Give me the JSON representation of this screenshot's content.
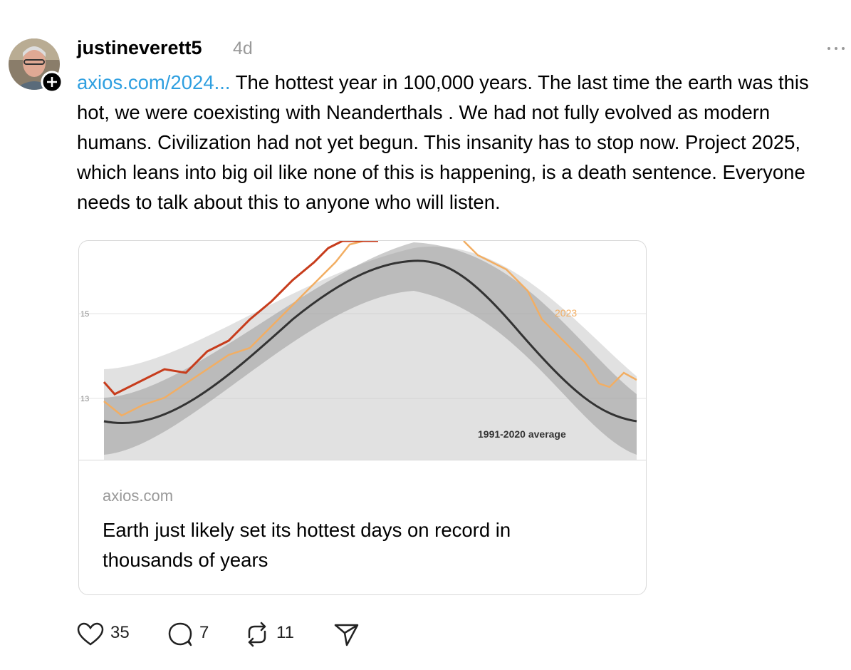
{
  "post": {
    "username": "justineverett5",
    "time": "4d",
    "link": "axios.com/2024...",
    "text": "The hottest year in 100,000 years. The last time the earth was this hot, we were coexisting with Neanderthals . We had not fully evolved as modern humans. Civilization had not yet begun. This insanity has to stop now. Project 2025, which leans into big oil like none of this is happening, is a death sentence. Everyone needs to talk about this to anyone who will listen.",
    "preview": {
      "image": {
        "tick_labels": [
          "15",
          "13"
        ],
        "series_label": "2023",
        "average_label": "1991-2020 average"
      },
      "domain": "axios.com",
      "title": "Earth just likely set its hottest days on record in thousands of years"
    },
    "actions": {
      "likes": 35,
      "replies": 7,
      "reposts": 11
    }
  }
}
